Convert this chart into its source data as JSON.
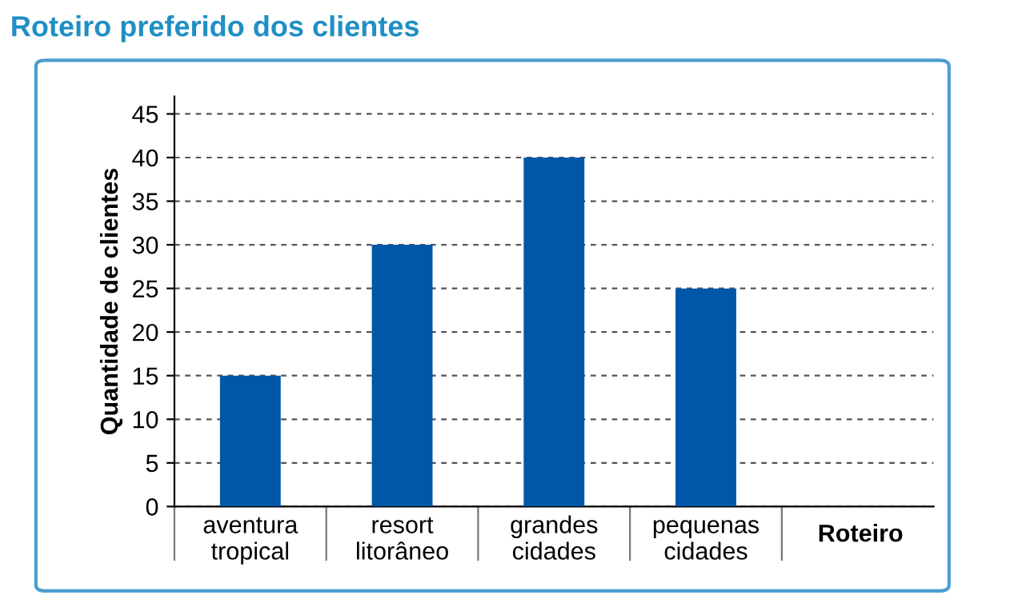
{
  "chart_data": {
    "type": "bar",
    "title": "Roteiro preferido dos clientes",
    "xlabel": "Roteiro",
    "ylabel": "Quantidade de clientes",
    "categories": [
      "aventura\ntropical",
      "resort\nlitorâneo",
      "grandes\ncidades",
      "pequenas\ncidades"
    ],
    "values": [
      15,
      30,
      40,
      25
    ],
    "color": "#0057a8",
    "ylim": [
      0,
      47
    ],
    "yticks": [
      0,
      5,
      10,
      15,
      20,
      25,
      30,
      35,
      40,
      45
    ],
    "grid": "y",
    "legend": false
  }
}
